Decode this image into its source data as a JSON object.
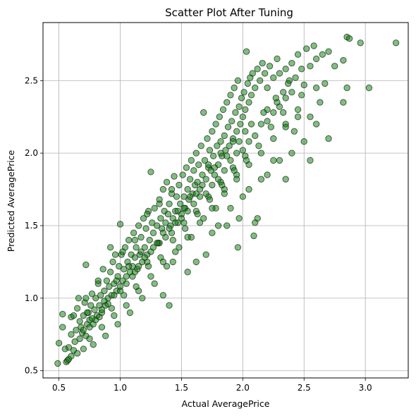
{
  "chart_data": {
    "type": "scatter",
    "title": "Scatter Plot After Tuning",
    "xlabel": "Actual AveragePrice",
    "ylabel": "Predicted AveragePrice",
    "xlim": [
      0.37,
      3.35
    ],
    "ylim": [
      0.45,
      2.9
    ],
    "xticks": [
      0.5,
      1.0,
      1.5,
      2.0,
      2.5,
      3.0
    ],
    "xtick_labels": [
      "0.5",
      "1.0",
      "1.5",
      "2.0",
      "2.5",
      "3.0"
    ],
    "yticks": [
      0.5,
      1.0,
      1.5,
      2.0,
      2.5
    ],
    "ytick_labels": [
      "0.5",
      "1.0",
      "1.5",
      "2.0",
      "2.5"
    ],
    "grid": true,
    "marker_color": "#008000",
    "marker_edge_color": "#1a1a1a",
    "marker_alpha": 0.5,
    "points": [
      [
        0.49,
        0.55
      ],
      [
        0.5,
        0.69
      ],
      [
        0.53,
        0.8
      ],
      [
        0.53,
        0.89
      ],
      [
        0.56,
        0.56
      ],
      [
        0.57,
        0.57
      ],
      [
        0.58,
        0.58
      ],
      [
        0.58,
        0.66
      ],
      [
        0.6,
        0.75
      ],
      [
        0.6,
        0.87
      ],
      [
        0.62,
        0.64
      ],
      [
        0.63,
        0.7
      ],
      [
        0.64,
        0.78
      ],
      [
        0.65,
        0.93
      ],
      [
        0.66,
        1.0
      ],
      [
        0.67,
        0.72
      ],
      [
        0.68,
        0.8
      ],
      [
        0.69,
        0.76
      ],
      [
        0.7,
        0.88
      ],
      [
        0.71,
        0.97
      ],
      [
        0.72,
        0.74
      ],
      [
        0.72,
        1.23
      ],
      [
        0.73,
        0.82
      ],
      [
        0.74,
        0.9
      ],
      [
        0.75,
        0.85
      ],
      [
        0.76,
        0.95
      ],
      [
        0.77,
        1.03
      ],
      [
        0.78,
        0.82
      ],
      [
        0.79,
        0.92
      ],
      [
        0.8,
        1.0
      ],
      [
        0.81,
        0.88
      ],
      [
        0.82,
        1.1
      ],
      [
        0.83,
        0.95
      ],
      [
        0.84,
        1.02
      ],
      [
        0.85,
        0.9
      ],
      [
        0.86,
        1.2
      ],
      [
        0.87,
        1.05
      ],
      [
        0.88,
        0.95
      ],
      [
        0.89,
        1.12
      ],
      [
        0.9,
        1.0
      ],
      [
        0.91,
        1.08
      ],
      [
        0.92,
        1.18
      ],
      [
        0.93,
        1.02
      ],
      [
        0.94,
        1.25
      ],
      [
        0.95,
        1.1
      ],
      [
        0.96,
        1.3
      ],
      [
        0.97,
        1.05
      ],
      [
        0.98,
        1.15
      ],
      [
        0.99,
        1.22
      ],
      [
        1.0,
        1.08
      ],
      [
        1.0,
        1.51
      ],
      [
        1.01,
        1.3
      ],
      [
        1.02,
        1.12
      ],
      [
        1.03,
        1.2
      ],
      [
        1.04,
        1.35
      ],
      [
        1.05,
        1.15
      ],
      [
        1.06,
        1.25
      ],
      [
        1.07,
        1.4
      ],
      [
        1.08,
        1.18
      ],
      [
        1.09,
        1.3
      ],
      [
        1.1,
        1.22
      ],
      [
        1.11,
        1.45
      ],
      [
        1.12,
        1.28
      ],
      [
        1.13,
        1.35
      ],
      [
        1.14,
        1.2
      ],
      [
        1.15,
        1.5
      ],
      [
        1.16,
        1.3
      ],
      [
        1.17,
        1.42
      ],
      [
        1.18,
        1.25
      ],
      [
        1.19,
        1.55
      ],
      [
        1.2,
        1.35
      ],
      [
        1.21,
        1.48
      ],
      [
        1.22,
        1.3
      ],
      [
        1.23,
        1.6
      ],
      [
        1.24,
        1.4
      ],
      [
        1.25,
        1.87
      ],
      [
        1.26,
        1.52
      ],
      [
        1.27,
        1.45
      ],
      [
        1.28,
        1.62
      ],
      [
        1.3,
        1.5
      ],
      [
        1.31,
        1.38
      ],
      [
        1.32,
        1.68
      ],
      [
        1.33,
        1.55
      ],
      [
        1.34,
        1.48
      ],
      [
        1.35,
        1.75
      ],
      [
        1.36,
        1.6
      ],
      [
        1.37,
        1.42
      ],
      [
        1.38,
        1.8
      ],
      [
        1.39,
        1.58
      ],
      [
        1.4,
        1.65
      ],
      [
        1.41,
        1.5
      ],
      [
        1.42,
        1.72
      ],
      [
        1.43,
        1.55
      ],
      [
        1.44,
        1.84
      ],
      [
        1.45,
        1.6
      ],
      [
        1.46,
        1.7
      ],
      [
        1.47,
        1.52
      ],
      [
        1.48,
        1.78
      ],
      [
        1.49,
        1.65
      ],
      [
        1.5,
        1.58
      ],
      [
        1.51,
        1.85
      ],
      [
        1.52,
        1.7
      ],
      [
        1.53,
        1.62
      ],
      [
        1.54,
        1.9
      ],
      [
        1.55,
        1.75
      ],
      [
        1.56,
        1.68
      ],
      [
        1.57,
        1.82
      ],
      [
        1.58,
        1.95
      ],
      [
        1.59,
        1.72
      ],
      [
        1.6,
        1.88
      ],
      [
        1.61,
        1.78
      ],
      [
        1.62,
        2.0
      ],
      [
        1.63,
        1.8
      ],
      [
        1.64,
        1.92
      ],
      [
        1.65,
        1.75
      ],
      [
        1.66,
        2.05
      ],
      [
        1.67,
        1.85
      ],
      [
        1.68,
        2.28
      ],
      [
        1.69,
        1.95
      ],
      [
        1.7,
        1.82
      ],
      [
        1.71,
        2.1
      ],
      [
        1.72,
        1.9
      ],
      [
        1.73,
        2.02
      ],
      [
        1.74,
        1.88
      ],
      [
        1.75,
        2.15
      ],
      [
        1.76,
        1.98
      ],
      [
        1.77,
        1.85
      ],
      [
        1.78,
        2.2
      ],
      [
        1.79,
        2.05
      ],
      [
        1.8,
        1.92
      ],
      [
        1.81,
        2.25
      ],
      [
        1.82,
        2.08
      ],
      [
        1.83,
        1.98
      ],
      [
        1.84,
        2.3
      ],
      [
        1.85,
        2.12
      ],
      [
        1.86,
        2.02
      ],
      [
        1.87,
        2.35
      ],
      [
        1.88,
        2.18
      ],
      [
        1.89,
        2.05
      ],
      [
        1.9,
        2.4
      ],
      [
        1.91,
        2.22
      ],
      [
        1.92,
        2.1
      ],
      [
        1.93,
        2.45
      ],
      [
        1.94,
        2.28
      ],
      [
        1.95,
        2.15
      ],
      [
        1.96,
        2.5
      ],
      [
        1.97,
        2.32
      ],
      [
        1.98,
        2.2
      ],
      [
        1.99,
        2.38
      ],
      [
        2.0,
        2.25
      ],
      [
        2.01,
        2.42
      ],
      [
        2.02,
        2.3
      ],
      [
        2.03,
        2.7
      ],
      [
        2.04,
        2.48
      ],
      [
        2.05,
        2.35
      ],
      [
        2.06,
        2.52
      ],
      [
        2.07,
        2.4
      ],
      [
        2.08,
        2.55
      ],
      [
        2.1,
        2.45
      ],
      [
        2.12,
        2.58
      ],
      [
        2.14,
        2.5
      ],
      [
        2.16,
        2.62
      ],
      [
        2.18,
        2.55
      ],
      [
        2.2,
        2.45
      ],
      [
        2.22,
        2.6
      ],
      [
        2.25,
        2.52
      ],
      [
        2.28,
        2.65
      ],
      [
        2.3,
        2.55
      ],
      [
        2.33,
        2.42
      ],
      [
        2.35,
        2.58
      ],
      [
        2.38,
        2.5
      ],
      [
        2.4,
        2.62
      ],
      [
        2.43,
        2.52
      ],
      [
        2.45,
        2.68
      ],
      [
        2.48,
        2.58
      ],
      [
        2.5,
        2.47
      ],
      [
        2.52,
        2.72
      ],
      [
        2.55,
        2.6
      ],
      [
        2.58,
        2.74
      ],
      [
        2.6,
        2.65
      ],
      [
        2.65,
        2.68
      ],
      [
        2.7,
        2.7
      ],
      [
        2.75,
        2.6
      ],
      [
        2.82,
        2.64
      ],
      [
        2.85,
        2.8
      ],
      [
        2.87,
        2.79
      ],
      [
        2.96,
        2.76
      ],
      [
        3.03,
        2.45
      ],
      [
        3.25,
        2.76
      ],
      [
        1.96,
        1.35
      ],
      [
        1.87,
        1.5
      ],
      [
        1.97,
        1.55
      ],
      [
        2.12,
        1.55
      ],
      [
        2.09,
        1.43
      ],
      [
        2.1,
        1.52
      ],
      [
        1.43,
        1.25
      ],
      [
        1.35,
        1.02
      ],
      [
        1.4,
        0.95
      ],
      [
        1.55,
        1.18
      ],
      [
        1.62,
        1.25
      ],
      [
        1.7,
        1.3
      ],
      [
        1.75,
        1.45
      ],
      [
        1.8,
        1.5
      ],
      [
        1.9,
        1.62
      ],
      [
        2.0,
        1.7
      ],
      [
        2.05,
        1.75
      ],
      [
        2.15,
        1.82
      ],
      [
        2.2,
        1.85
      ],
      [
        2.3,
        1.95
      ],
      [
        2.35,
        1.82
      ],
      [
        2.25,
        1.95
      ],
      [
        2.4,
        2.0
      ],
      [
        2.5,
        2.08
      ],
      [
        2.55,
        1.95
      ],
      [
        2.7,
        2.1
      ],
      [
        2.6,
        2.2
      ],
      [
        2.63,
        2.35
      ],
      [
        2.82,
        2.35
      ],
      [
        2.85,
        2.45
      ],
      [
        2.55,
        2.25
      ],
      [
        2.6,
        2.45
      ],
      [
        2.67,
        2.48
      ],
      [
        2.45,
        2.3
      ],
      [
        2.42,
        2.15
      ],
      [
        2.35,
        2.2
      ],
      [
        2.48,
        2.4
      ],
      [
        2.2,
        2.3
      ],
      [
        2.28,
        2.35
      ],
      [
        1.95,
        1.85
      ],
      [
        1.85,
        1.75
      ],
      [
        1.78,
        1.62
      ],
      [
        1.68,
        1.55
      ],
      [
        1.58,
        1.42
      ],
      [
        1.48,
        1.35
      ],
      [
        1.38,
        1.22
      ],
      [
        1.28,
        1.1
      ],
      [
        1.18,
        1.0
      ],
      [
        1.08,
        0.9
      ],
      [
        0.98,
        0.82
      ],
      [
        0.88,
        0.74
      ],
      [
        0.78,
        0.68
      ],
      [
        0.7,
        0.65
      ],
      [
        0.65,
        0.62
      ],
      [
        0.6,
        0.6
      ],
      [
        0.55,
        0.65
      ],
      [
        0.75,
        0.72
      ],
      [
        0.85,
        0.8
      ],
      [
        0.95,
        0.88
      ],
      [
        1.05,
        0.95
      ],
      [
        1.15,
        1.05
      ],
      [
        1.25,
        1.15
      ],
      [
        1.35,
        1.25
      ],
      [
        1.45,
        1.32
      ],
      [
        1.55,
        1.42
      ],
      [
        1.65,
        1.52
      ],
      [
        1.75,
        1.62
      ],
      [
        1.85,
        1.72
      ],
      [
        1.95,
        1.82
      ],
      [
        2.05,
        1.92
      ],
      [
        2.15,
        2.0
      ],
      [
        2.25,
        2.1
      ],
      [
        2.35,
        2.18
      ],
      [
        2.45,
        2.25
      ],
      [
        1.02,
        1.32
      ],
      [
        1.12,
        1.4
      ],
      [
        1.22,
        1.58
      ],
      [
        1.32,
        1.65
      ],
      [
        1.42,
        1.75
      ],
      [
        1.52,
        1.62
      ],
      [
        1.62,
        1.72
      ],
      [
        1.72,
        1.92
      ],
      [
        1.82,
        2.0
      ],
      [
        1.92,
        2.08
      ],
      [
        2.02,
        2.15
      ],
      [
        0.92,
        1.35
      ],
      [
        0.82,
        1.12
      ],
      [
        0.72,
        1.0
      ],
      [
        0.62,
        0.88
      ],
      [
        1.12,
        1.18
      ],
      [
        1.22,
        1.25
      ],
      [
        1.32,
        1.38
      ],
      [
        1.42,
        1.45
      ],
      [
        1.52,
        1.52
      ],
      [
        1.62,
        1.6
      ],
      [
        1.72,
        1.7
      ],
      [
        1.82,
        1.8
      ],
      [
        1.92,
        1.9
      ],
      [
        2.02,
        1.98
      ],
      [
        0.75,
        0.8
      ],
      [
        0.8,
        0.85
      ],
      [
        0.85,
        0.92
      ],
      [
        0.9,
        0.96
      ],
      [
        0.95,
        1.02
      ],
      [
        1.0,
        1.05
      ],
      [
        1.05,
        1.1
      ],
      [
        1.1,
        1.15
      ],
      [
        1.15,
        1.22
      ],
      [
        1.2,
        1.28
      ],
      [
        1.25,
        1.32
      ],
      [
        1.3,
        1.38
      ],
      [
        1.35,
        1.45
      ],
      [
        1.4,
        1.48
      ],
      [
        1.45,
        1.52
      ],
      [
        1.5,
        1.55
      ],
      [
        1.55,
        1.6
      ],
      [
        1.6,
        1.65
      ],
      [
        1.65,
        1.7
      ],
      [
        1.7,
        1.72
      ],
      [
        1.75,
        1.78
      ],
      [
        1.8,
        1.82
      ],
      [
        1.85,
        1.88
      ],
      [
        1.9,
        1.95
      ],
      [
        1.95,
        2.0
      ],
      [
        2.0,
        2.02
      ],
      [
        2.05,
        2.08
      ],
      [
        2.1,
        2.12
      ],
      [
        2.15,
        2.2
      ],
      [
        2.2,
        2.22
      ],
      [
        2.25,
        2.28
      ],
      [
        2.3,
        2.32
      ],
      [
        2.35,
        2.38
      ],
      [
        2.4,
        2.42
      ],
      [
        0.7,
        0.78
      ],
      [
        0.77,
        0.86
      ],
      [
        0.83,
        0.87
      ],
      [
        0.87,
        0.98
      ],
      [
        0.93,
        0.93
      ],
      [
        0.97,
        1.12
      ],
      [
        1.03,
        1.02
      ],
      [
        1.07,
        1.22
      ],
      [
        1.13,
        1.08
      ],
      [
        1.17,
        1.32
      ],
      [
        1.23,
        1.22
      ],
      [
        1.27,
        1.35
      ],
      [
        1.33,
        1.28
      ],
      [
        1.37,
        1.52
      ],
      [
        1.43,
        1.4
      ],
      [
        1.47,
        1.6
      ],
      [
        1.53,
        1.48
      ],
      [
        1.57,
        1.7
      ],
      [
        1.63,
        1.58
      ],
      [
        1.67,
        1.78
      ],
      [
        1.73,
        1.68
      ],
      [
        1.77,
        1.9
      ],
      [
        1.83,
        1.78
      ],
      [
        1.87,
        1.98
      ],
      [
        1.93,
        1.88
      ],
      [
        1.97,
        2.08
      ],
      [
        2.03,
        1.95
      ],
      [
        2.07,
        2.2
      ],
      [
        2.13,
        2.05
      ],
      [
        2.17,
        2.28
      ],
      [
        2.23,
        2.18
      ],
      [
        2.27,
        2.38
      ],
      [
        2.33,
        2.28
      ],
      [
        2.37,
        2.48
      ],
      [
        0.67,
        0.84
      ],
      [
        0.73,
        0.9
      ]
    ]
  }
}
